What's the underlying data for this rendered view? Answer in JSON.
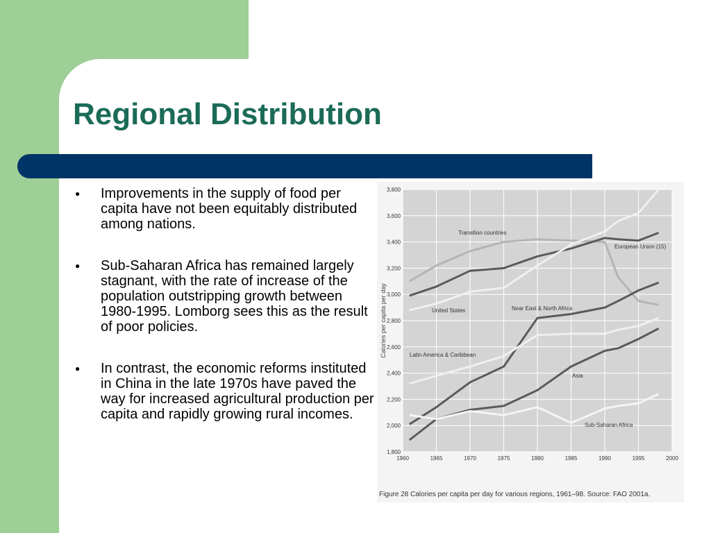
{
  "slide": {
    "title": "Regional Distribution",
    "bullets": [
      "Improvements in the supply of food per capita have not been equitably distributed among nations.",
      "Sub-Saharan Africa has remained largely stagnant, with the rate of increase of the population outstripping growth between 1980-1995. Lomborg sees this as the result of poor policies.",
      "In contrast, the economic reforms instituted in China in the late 1970s have paved the way for increased agricultural production per capita and rapidly growing rural incomes."
    ]
  },
  "chart_data": {
    "type": "line",
    "caption": "Figure 28 Calories per capita per day for various regions, 1961–98. Source: FAO 2001a.",
    "y_label": "Calories per capita per day",
    "x": [
      1961,
      1965,
      1970,
      1975,
      1980,
      1985,
      1990,
      1992,
      1995,
      1998
    ],
    "xlim": [
      1960,
      2000
    ],
    "xticks": [
      1960,
      1965,
      1970,
      1975,
      1980,
      1985,
      1990,
      1995,
      2000
    ],
    "ylim": [
      1800,
      3800
    ],
    "yticks": [
      {
        "value": 1800,
        "label": "1,800"
      },
      {
        "value": 2000,
        "label": "2,000"
      },
      {
        "value": 2200,
        "label": "2,200"
      },
      {
        "value": 2400,
        "label": "2,400"
      },
      {
        "value": 2600,
        "label": "2,600"
      },
      {
        "value": 2800,
        "label": "2,800"
      },
      {
        "value": 3000,
        "label": "3,000"
      },
      {
        "value": 3200,
        "label": "3,200"
      },
      {
        "value": 3400,
        "label": "3,400"
      },
      {
        "value": 3600,
        "label": "3,600"
      },
      {
        "value": 3800,
        "label": "3,800"
      }
    ],
    "grid": true,
    "series": [
      {
        "name": "Transition countries",
        "color": "#b4b4b4",
        "values": [
          3100,
          3220,
          3330,
          3400,
          3420,
          3410,
          3400,
          3130,
          2950,
          2920
        ]
      },
      {
        "name": "European Union (15)",
        "color": "#5a5a5a",
        "values": [
          2990,
          3060,
          3180,
          3200,
          3290,
          3350,
          3430,
          3420,
          3410,
          3470
        ]
      },
      {
        "name": "United States",
        "color": "#f0f0f0",
        "values": [
          2880,
          2930,
          3020,
          3050,
          3220,
          3380,
          3480,
          3560,
          3620,
          3800
        ]
      },
      {
        "name": "Near East & North Africa",
        "color": "#5a5a5a",
        "values": [
          2010,
          2140,
          2330,
          2450,
          2820,
          2850,
          2900,
          2950,
          3030,
          3090
        ]
      },
      {
        "name": "Latin America & Caribbean",
        "color": "#f0f0f0",
        "values": [
          2320,
          2380,
          2450,
          2530,
          2690,
          2700,
          2700,
          2730,
          2760,
          2820
        ]
      },
      {
        "name": "Asia",
        "color": "#5a5a5a",
        "values": [
          1890,
          2050,
          2120,
          2150,
          2270,
          2450,
          2570,
          2590,
          2660,
          2740
        ]
      },
      {
        "name": "Sub-Saharan Africa",
        "color": "#f5f5f5",
        "values": [
          2080,
          2050,
          2110,
          2080,
          2140,
          2020,
          2130,
          2150,
          2170,
          2240
        ]
      }
    ]
  }
}
